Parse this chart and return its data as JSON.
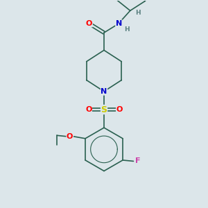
{
  "background_color": "#dce6ea",
  "bond_color": "#2a6050",
  "bond_width": 1.2,
  "atom_colors": {
    "O": "#ff0000",
    "N": "#0000cc",
    "S": "#cccc00",
    "F": "#cc44aa",
    "H": "#5a8080"
  },
  "font_size_atom": 8,
  "font_size_small": 6.5
}
